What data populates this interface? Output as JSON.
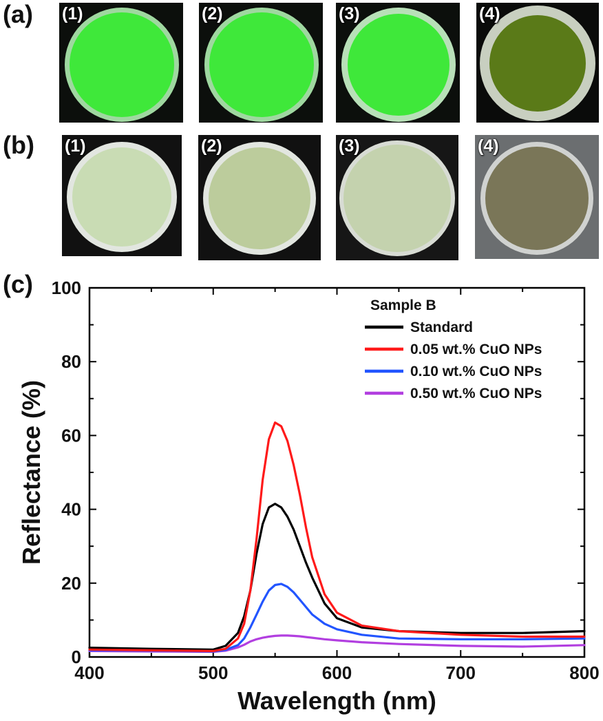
{
  "panels": {
    "a_label": "(a)",
    "b_label": "(b)",
    "c_label": "(c)"
  },
  "photos_a": [
    {
      "label": "(1)",
      "disc_color": "#3fe83a",
      "bg_color": "#0c0f0c",
      "rim_color": "#9fd8a0"
    },
    {
      "label": "(2)",
      "disc_color": "#3fe83a",
      "bg_color": "#0c0f0c",
      "rim_color": "#9fd8a0"
    },
    {
      "label": "(3)",
      "disc_color": "#3fe83a",
      "bg_color": "#0c0f0c",
      "rim_color": "#b8e0b8"
    },
    {
      "label": "(4)",
      "disc_color": "#5a7a18",
      "bg_color": "#0a0b0a",
      "rim_color": "#c8cfc0"
    }
  ],
  "photos_b": [
    {
      "label": "(1)",
      "disc_color": "#c9dcb4",
      "bg_color": "#111111",
      "rim_color": "#e2e6e0"
    },
    {
      "label": "(2)",
      "disc_color": "#bccc9c",
      "bg_color": "#111111",
      "rim_color": "#e2e6e0"
    },
    {
      "label": "(3)",
      "disc_color": "#c4d2ae",
      "bg_color": "#161616",
      "rim_color": "#d8dcd4"
    },
    {
      "label": "(4)",
      "disc_color": "#7a7658",
      "bg_color": "#6b6e70",
      "rim_color": "#d0d2d0"
    }
  ],
  "chart_data": {
    "type": "line",
    "xlabel": "Wavelength (nm)",
    "ylabel": "Reflectance (%)",
    "xlim": [
      400,
      800
    ],
    "ylim": [
      0,
      100
    ],
    "x_ticks": [
      "400",
      "500",
      "600",
      "700",
      "800"
    ],
    "y_ticks": [
      "0",
      "20",
      "40",
      "60",
      "80",
      "100"
    ],
    "legend_title": "Sample B",
    "legend_position": "top-right",
    "series": [
      {
        "name": "Standard",
        "color": "#000000",
        "x": [
          400,
          450,
          500,
          510,
          520,
          525,
          530,
          535,
          540,
          545,
          550,
          555,
          560,
          565,
          570,
          575,
          580,
          590,
          600,
          620,
          650,
          700,
          750,
          800
        ],
        "y": [
          2.5,
          2.2,
          2.0,
          3.0,
          6.5,
          11,
          18,
          28,
          36,
          40.5,
          41.5,
          40.5,
          38,
          34.5,
          30,
          25.5,
          21.5,
          14.5,
          10.5,
          8,
          7,
          6.5,
          6.5,
          7
        ]
      },
      {
        "name": "0.05 wt.% CuO NPs",
        "color": "#ff1a1a",
        "x": [
          400,
          450,
          500,
          510,
          520,
          525,
          530,
          535,
          540,
          545,
          550,
          555,
          560,
          565,
          570,
          575,
          580,
          590,
          600,
          620,
          650,
          700,
          750,
          800
        ],
        "y": [
          2.0,
          1.8,
          1.6,
          2.2,
          5,
          9,
          18,
          32,
          48,
          59,
          63.5,
          62.5,
          58.5,
          52,
          44,
          35,
          27,
          17,
          12,
          8.5,
          7,
          6,
          5.5,
          5.5
        ]
      },
      {
        "name": "0.10 wt.% CuO NPs",
        "color": "#2255ff",
        "x": [
          400,
          450,
          500,
          510,
          520,
          525,
          530,
          535,
          540,
          545,
          550,
          555,
          560,
          565,
          570,
          575,
          580,
          590,
          600,
          620,
          650,
          700,
          750,
          800
        ],
        "y": [
          1.8,
          1.7,
          1.5,
          1.9,
          3.2,
          5,
          8,
          11.5,
          15,
          18,
          19.5,
          19.8,
          19,
          17.5,
          15.5,
          13.5,
          11.5,
          9,
          7.5,
          6,
          5,
          4.8,
          4.8,
          5
        ]
      },
      {
        "name": "0.50 wt.% CuO NPs",
        "color": "#b23fe0",
        "x": [
          400,
          450,
          500,
          510,
          520,
          525,
          530,
          535,
          540,
          545,
          550,
          555,
          560,
          565,
          570,
          575,
          580,
          590,
          600,
          620,
          650,
          700,
          750,
          800
        ],
        "y": [
          1.6,
          1.5,
          1.4,
          1.7,
          2.6,
          3.3,
          4.2,
          4.8,
          5.2,
          5.5,
          5.7,
          5.8,
          5.8,
          5.7,
          5.6,
          5.4,
          5.2,
          4.8,
          4.5,
          4.0,
          3.5,
          3.0,
          2.8,
          3.2
        ]
      }
    ]
  }
}
